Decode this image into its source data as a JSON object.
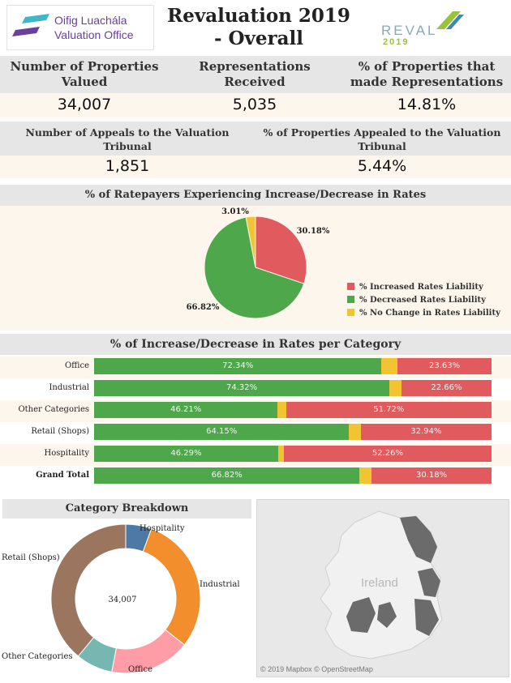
{
  "header": {
    "logo_line1": "Oifig Luachála",
    "logo_line2": "Valuation Office",
    "title_line1": "Revaluation 2019",
    "title_line2": "- Overall",
    "reval_word": "REVAL",
    "reval_year": "2019"
  },
  "kpis_row1": [
    {
      "label_line1": "Number of Properties",
      "label_line2": "Valued",
      "value": "34,007"
    },
    {
      "label_line1": "Representations",
      "label_line2": "Received",
      "value": "5,035"
    },
    {
      "label_line1": "% of Properties that",
      "label_line2": "made Representations",
      "value": "14.81%"
    }
  ],
  "kpis_row2": [
    {
      "label_line1": "Number of Appeals to the Valuation",
      "label_line2": "Tribunal",
      "value": "1,851"
    },
    {
      "label_line1": "% of Properties Appealed to the Valuation",
      "label_line2": "Tribunal",
      "value": "5.44%"
    }
  ],
  "colors": {
    "increase": "#e05a5e",
    "decrease": "#4ea74a",
    "no_change": "#f2c432",
    "hospitality": "#4e79a7",
    "industrial": "#f28e2b",
    "office": "#ff9da7",
    "other": "#76b7b2",
    "retail": "#9c755f"
  },
  "chart_data": [
    {
      "type": "pie",
      "title": "% of Ratepayers Experiencing  Increase/Decrease in Rates",
      "series": [
        {
          "name": "% Increased Rates Liability",
          "value": 30.18,
          "label": "30.18%"
        },
        {
          "name": "% Decreased Rates Liability",
          "value": 66.82,
          "label": "66.82%"
        },
        {
          "name": "% No Change in Rates Liability",
          "value": 3.01,
          "label": "3.01%"
        }
      ],
      "legend": "right"
    },
    {
      "type": "bar",
      "orientation": "horizontal",
      "stacked": true,
      "title": "% of Increase/Decrease in Rates per Category",
      "categories": [
        "Office",
        "Industrial",
        "Other Categories",
        "Retail (Shops)",
        "Hospitality",
        "Grand Total"
      ],
      "series": [
        {
          "name": "% Decreased Rates Liability",
          "values": [
            72.34,
            74.32,
            46.21,
            64.15,
            46.29,
            66.82
          ],
          "labels": [
            "72.34%",
            "74.32%",
            "46.21%",
            "64.15%",
            "46.29%",
            "66.82%"
          ]
        },
        {
          "name": "% No Change in Rates Liability",
          "values": [
            4.03,
            3.02,
            2.07,
            2.91,
            1.45,
            3.01
          ]
        },
        {
          "name": "% Increased Rates Liability",
          "values": [
            23.63,
            22.66,
            51.72,
            32.94,
            52.26,
            30.18
          ],
          "labels": [
            "23.63%",
            "22.66%",
            "51.72%",
            "32.94%",
            "52.26%",
            "30.18%"
          ]
        }
      ],
      "xlim": [
        0,
        100
      ]
    },
    {
      "type": "pie",
      "variant": "donut",
      "title": "Category Breakdown",
      "center_label": "34,007",
      "series": [
        {
          "name": "Hospitality",
          "value": 5.6
        },
        {
          "name": "Industrial",
          "value": 30.0
        },
        {
          "name": "Office",
          "value": 17.4
        },
        {
          "name": "Other Categories",
          "value": 8.0
        },
        {
          "name": "Retail (Shops)",
          "value": 39.0
        }
      ]
    }
  ],
  "map": {
    "label": "Ireland",
    "credit": "© 2019 Mapbox © OpenStreetMap"
  }
}
